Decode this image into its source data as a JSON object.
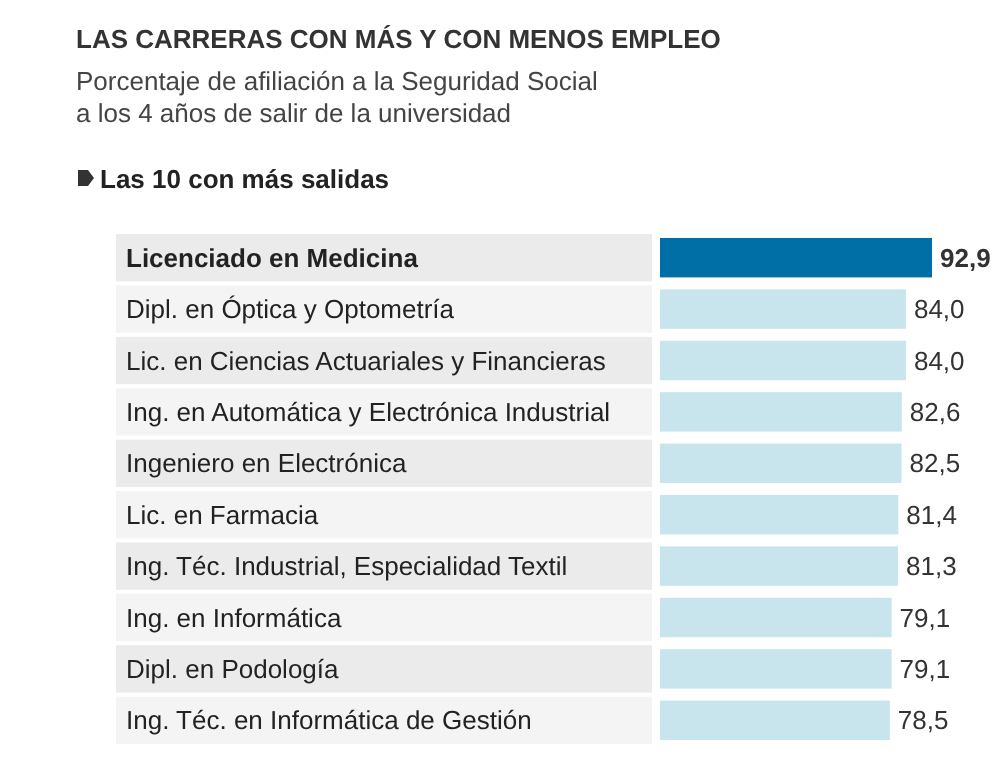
{
  "chart_data": {
    "type": "bar",
    "orientation": "horizontal",
    "title": "LAS CARRERAS CON MÁS Y CON MENOS EMPLEO",
    "subtitle": "Porcentaje de afiliación a la Seguridad Social\na los 4 años de salir de la universidad",
    "annotations": [
      "Las 10 con más salidas"
    ],
    "categories": [
      "Licenciado en Medicina",
      "Dipl. en Óptica y Optometría",
      "Lic. en Ciencias Actuariales y Financieras",
      "Ing. en Automática y Electrónica Industrial",
      "Ingeniero en Electrónica",
      "Lic. en Farmacia",
      "Ing. Téc. Industrial, Especialidad Textil",
      "Ing. en Informática",
      "Dipl. en Podología",
      "Ing. Téc. en Informática de Gestión"
    ],
    "values": [
      92.9,
      84.0,
      84.0,
      82.6,
      82.5,
      81.4,
      81.3,
      79.1,
      79.1,
      78.5
    ],
    "value_labels": [
      "92,9",
      "84,0",
      "84,0",
      "82,6",
      "82,5",
      "81,4",
      "81,3",
      "79,1",
      "79,1",
      "78,5"
    ],
    "colors": [
      "#006fa6",
      "#c8e4ed",
      "#c8e4ed",
      "#c8e4ed",
      "#c8e4ed",
      "#c8e4ed",
      "#c8e4ed",
      "#c8e4ed",
      "#c8e4ed",
      "#c8e4ed"
    ],
    "data_labels": true
  }
}
